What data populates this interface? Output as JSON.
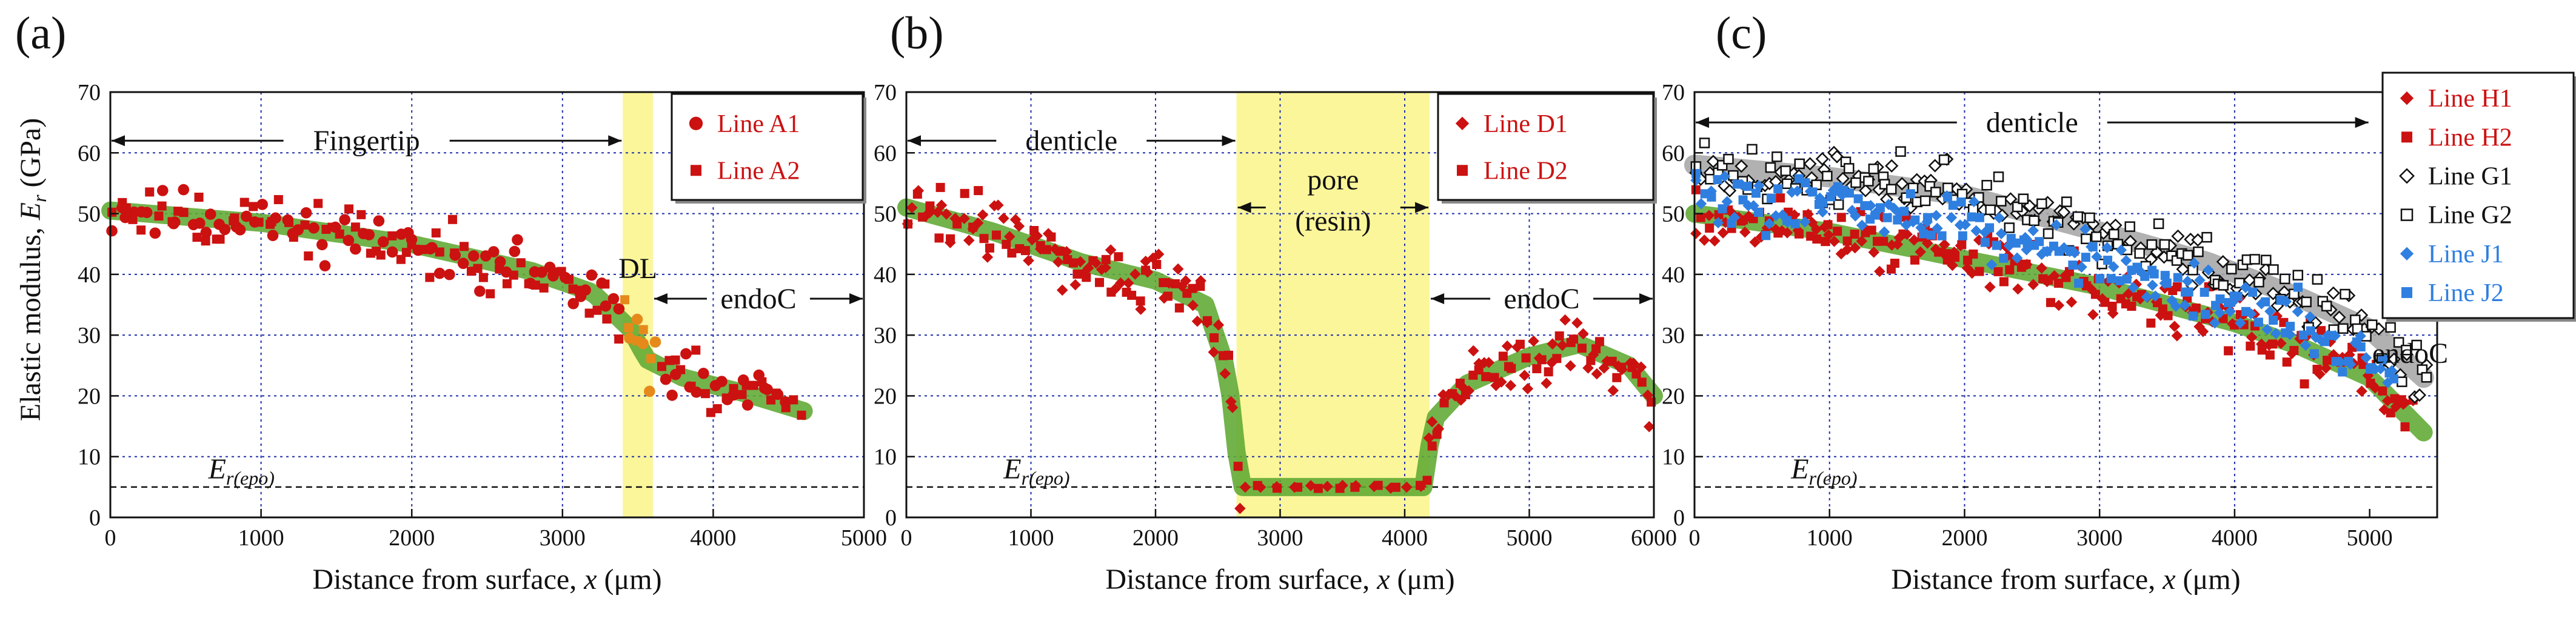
{
  "figure": {
    "ylabel": "Elastic modulus, E_r (GPa)",
    "ylabel_main": "Elastic modulus, ",
    "ylabel_sym": "E",
    "ylabel_sub": "r",
    "ylabel_unit": " (GPa)",
    "epoxy_label_sym": "E",
    "epoxy_label_sub": "r(epo)",
    "colors": {
      "red": "#cc1111",
      "blue": "#2f7fe0",
      "black": "#111111",
      "green_band": "#5fa832",
      "gray_band": "#a6a6a6",
      "yellow_zone": "#fbf69a",
      "grid": "#1f2fa8"
    }
  },
  "chart_data": [
    {
      "type": "scatter",
      "panel_label": "(a)",
      "xlabel_text": "Distance from surface, ",
      "xlabel_sym": "x",
      "xlabel_unit": " (μm)",
      "xlim": [
        0,
        5000
      ],
      "ylim": [
        0,
        70
      ],
      "xticks": [
        0,
        1000,
        2000,
        3000,
        4000,
        5000
      ],
      "yticks": [
        0,
        10,
        20,
        30,
        40,
        50,
        60,
        70
      ],
      "epoxy_level": 5,
      "yellow_zones": [
        [
          3400,
          3600
        ]
      ],
      "regions": [
        {
          "label": "Fingertip",
          "x_start": 0,
          "x_end": 3400,
          "y": 62
        },
        {
          "label": "DL",
          "x_start": null,
          "x_end": null,
          "x_label": 3500,
          "y": 41
        },
        {
          "label": "endoC",
          "x_start": 3600,
          "x_end": 5000,
          "y": 36
        }
      ],
      "trend": [
        [
          0,
          50.5
        ],
        [
          1000,
          48.5
        ],
        [
          2000,
          45
        ],
        [
          2800,
          40.5
        ],
        [
          3200,
          37
        ],
        [
          3450,
          31
        ],
        [
          3560,
          26
        ],
        [
          3800,
          23
        ],
        [
          4200,
          20.5
        ],
        [
          4600,
          17.5
        ]
      ],
      "series": [
        {
          "name": "Line A1",
          "marker": "circle",
          "color": "#cc1111",
          "seed": 11,
          "x_start": 0,
          "x_end": 4500,
          "n": 95,
          "spread": 2.6
        },
        {
          "name": "Line A2",
          "marker": "square",
          "color": "#cc1111",
          "seed": 23,
          "x_start": 0,
          "x_end": 4600,
          "n": 95,
          "spread": 3.2
        }
      ],
      "legend": {
        "position": "top-right",
        "entries": [
          "Line A1",
          "Line A2"
        ]
      }
    },
    {
      "type": "scatter",
      "panel_label": "(b)",
      "xlabel_text": "Distance from surface, ",
      "xlabel_sym": "x",
      "xlabel_unit": " (μm)",
      "xlim": [
        0,
        6000
      ],
      "ylim": [
        0,
        70
      ],
      "xticks": [
        0,
        1000,
        2000,
        3000,
        4000,
        5000,
        6000
      ],
      "yticks": [
        0,
        10,
        20,
        30,
        40,
        50,
        60,
        70
      ],
      "epoxy_level": 5,
      "yellow_zones": [
        [
          2650,
          4200
        ]
      ],
      "regions": [
        {
          "label": "denticle",
          "x_start": 0,
          "x_end": 2650,
          "y": 62
        },
        {
          "label": "pore",
          "label2": "(resin)",
          "x_start": 2650,
          "x_end": 4200,
          "y": 51
        },
        {
          "label": "endoC",
          "x_start": 4200,
          "x_end": 6000,
          "y": 36
        }
      ],
      "trend": [
        [
          0,
          51
        ],
        [
          700,
          47
        ],
        [
          1400,
          42
        ],
        [
          2000,
          39
        ],
        [
          2400,
          35
        ],
        [
          2580,
          24
        ],
        [
          2680,
          5
        ],
        [
          4150,
          5
        ],
        [
          4230,
          16
        ],
        [
          4500,
          22
        ],
        [
          5000,
          26.5
        ],
        [
          5400,
          28.5
        ],
        [
          5800,
          25
        ],
        [
          6000,
          20
        ]
      ],
      "series": [
        {
          "name": "Line D1",
          "marker": "diamond",
          "color": "#cc1111",
          "seed": 31,
          "x_start": 0,
          "x_end": 6000,
          "n": 140,
          "spread": 3.0
        },
        {
          "name": "Line D2",
          "marker": "square",
          "color": "#cc1111",
          "seed": 47,
          "x_start": 0,
          "x_end": 6000,
          "n": 110,
          "spread": 3.0
        }
      ],
      "legend": {
        "position": "top-right",
        "entries": [
          "Line D1",
          "Line D2"
        ]
      }
    },
    {
      "type": "scatter",
      "panel_label": "(c)",
      "xlabel_text": "Distance from surface, ",
      "xlabel_sym": "x",
      "xlabel_unit": " (μm)",
      "xlim": [
        0,
        5500
      ],
      "ylim": [
        0,
        70
      ],
      "xticks": [
        0,
        1000,
        2000,
        3000,
        4000,
        5000
      ],
      "yticks": [
        0,
        10,
        20,
        30,
        40,
        50,
        60,
        70
      ],
      "epoxy_level": 5,
      "yellow_zones": [],
      "regions": [
        {
          "label": "denticle",
          "x_start": 0,
          "x_end": 5000,
          "y": 65
        },
        {
          "label": "endoC",
          "x_start": null,
          "x_end": null,
          "x_label": 5300,
          "y": 27
        }
      ],
      "trend": [
        [
          0,
          50
        ],
        [
          1000,
          47
        ],
        [
          2000,
          42.5
        ],
        [
          3000,
          38
        ],
        [
          4000,
          32
        ],
        [
          4500,
          28
        ],
        [
          5000,
          23
        ],
        [
          5400,
          14
        ]
      ],
      "trend_gray": [
        [
          0,
          58
        ],
        [
          1000,
          56
        ],
        [
          2000,
          53
        ],
        [
          3000,
          47
        ],
        [
          3800,
          42
        ],
        [
          4500,
          36
        ],
        [
          5000,
          31
        ],
        [
          5400,
          23
        ]
      ],
      "series": [
        {
          "name": "Line H1",
          "marker": "diamond",
          "color": "#cc1111",
          "seed": 53,
          "x_start": 0,
          "x_end": 5350,
          "n": 120,
          "spread": 3.0,
          "curve": "green"
        },
        {
          "name": "Line H2",
          "marker": "square",
          "color": "#cc1111",
          "seed": 61,
          "x_start": 0,
          "x_end": 5350,
          "n": 120,
          "spread": 3.0,
          "curve": "green"
        },
        {
          "name": "Line G1",
          "marker": "open-diamond",
          "color": "#111111",
          "seed": 67,
          "x_start": 0,
          "x_end": 5450,
          "n": 120,
          "spread": 2.6,
          "curve": "gray"
        },
        {
          "name": "Line G2",
          "marker": "open-square",
          "color": "#111111",
          "seed": 71,
          "x_start": 0,
          "x_end": 5450,
          "n": 120,
          "spread": 2.8,
          "curve": "gray"
        },
        {
          "name": "Line J1",
          "marker": "diamond",
          "color": "#2f7fe0",
          "seed": 79,
          "x_start": 0,
          "x_end": 5200,
          "n": 110,
          "spread": 2.8,
          "curve": "blue"
        },
        {
          "name": "Line J2",
          "marker": "square",
          "color": "#2f7fe0",
          "seed": 83,
          "x_start": 0,
          "x_end": 5200,
          "n": 110,
          "spread": 2.8,
          "curve": "blue"
        }
      ],
      "legend": {
        "position": "top-right",
        "entries": [
          "Line H1",
          "Line H2",
          "Line G1",
          "Line G2",
          "Line J1",
          "Line J2"
        ]
      }
    }
  ]
}
